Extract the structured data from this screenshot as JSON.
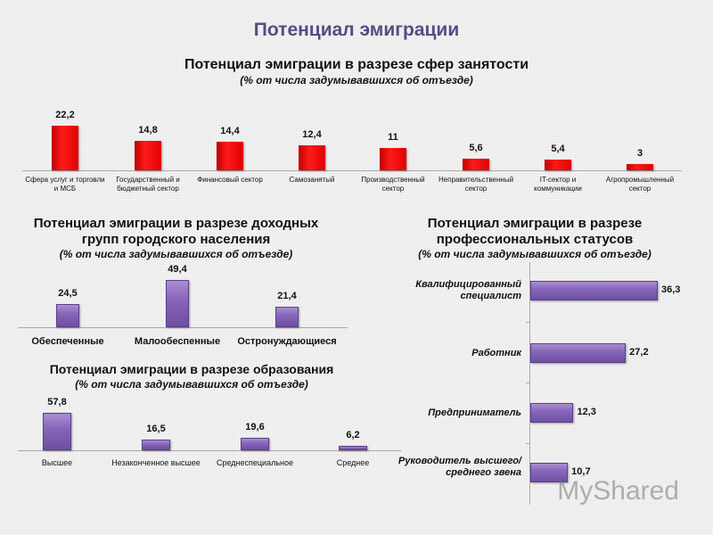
{
  "slide_title": "Потенциал эмиграции",
  "watermark": "MyShared",
  "colors": {
    "title": "#5a4a82",
    "sector_bars": "#e00000",
    "purple_bars": "#8866bb"
  },
  "chart_data": [
    {
      "type": "bar",
      "title": "Потенциал эмиграции в разрезе сфер занятости",
      "subtitle": "(% от числа задумывавшихся об отъезде)",
      "categories": [
        "Сфера услуг и торговли и МСБ",
        "Государственный и бюджетный сектор",
        "Финансовый сектор",
        "Самозанятый",
        "Производственный сектор",
        "Неправительственный сектор",
        "IT-сектор и коммуникации",
        "Агропромышленный сектор"
      ],
      "values": [
        22.2,
        14.8,
        14.4,
        12.4,
        11,
        5.6,
        5.4,
        3
      ],
      "labels": [
        "22,2",
        "14,8",
        "14,4",
        "12,4",
        "11",
        "5,6",
        "5,4",
        "3"
      ]
    },
    {
      "type": "bar",
      "title": "Потенциал эмиграции в разрезе доходных групп городского населения",
      "subtitle": "(% от числа задумывавшихся об отъезде)",
      "categories": [
        "Обеспеченные",
        "Малообеспенные",
        "Остронуждающиеся"
      ],
      "values": [
        24.5,
        49.4,
        21.4
      ],
      "labels": [
        "24,5",
        "49,4",
        "21,4"
      ]
    },
    {
      "type": "bar",
      "title": "Потенциал эмиграции в разрезе образования",
      "subtitle": "(% от числа задумывавшихся об отъезде)",
      "categories": [
        "Высшее",
        "Незаконченное высшее",
        "Среднеспециальное",
        "Среднее"
      ],
      "values": [
        57.8,
        16.5,
        19.6,
        6.2
      ],
      "labels": [
        "57,8",
        "16,5",
        "19,6",
        "6,2"
      ]
    },
    {
      "type": "bar",
      "orientation": "horizontal",
      "title": "Потенциал эмиграции в разрезе профессиональных статусов",
      "subtitle": "(% от числа задумывавшихся об отъезде)",
      "categories": [
        "Квалифицированный специалист",
        "Работник",
        "Предприниматель",
        "Руководитель высшего/среднего звена"
      ],
      "values": [
        36.3,
        27.2,
        12.3,
        10.7
      ],
      "labels": [
        "36,3",
        "27,2",
        "12,3",
        "10,7"
      ]
    }
  ]
}
